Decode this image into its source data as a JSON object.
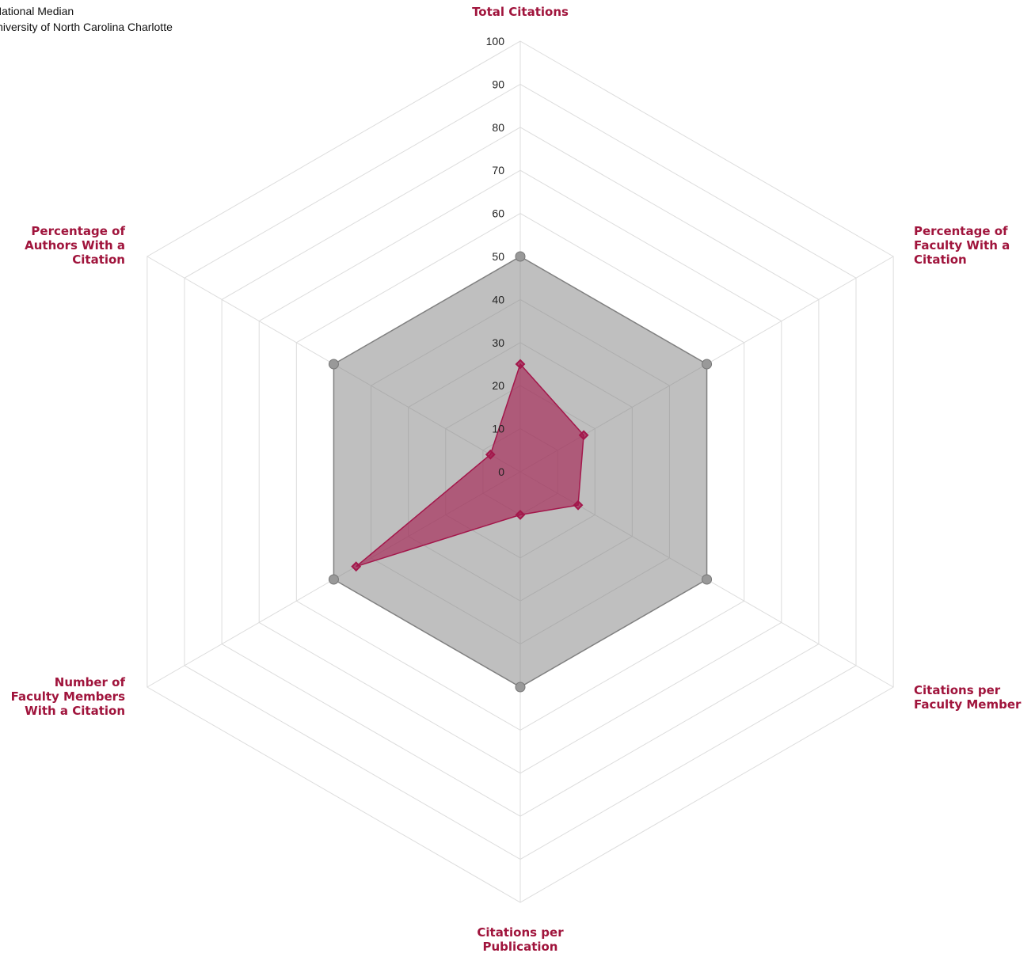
{
  "chart_data": {
    "type": "radar",
    "categories": [
      "Total Citations",
      "Percentage of\nFaculty With a\nCitation",
      "Citations per\nFaculty Member",
      "Citations per\nPublication",
      "Number of\nFaculty Members\nWith a Citation",
      "Percentage of\nAuthors With a\nCitation"
    ],
    "series": [
      {
        "name": "National Median",
        "color": "#808080",
        "values": [
          50,
          50,
          50,
          50,
          50,
          50
        ]
      },
      {
        "name": "University of North Carolina Charlotte",
        "color": "#a3174b",
        "values": [
          25,
          17,
          15.5,
          10,
          44,
          8
        ]
      }
    ],
    "rlim": [
      0,
      100
    ],
    "rticks": [
      0,
      10,
      20,
      30,
      40,
      50,
      60,
      70,
      80,
      90,
      100
    ],
    "grid": true,
    "legend": "top-left"
  }
}
